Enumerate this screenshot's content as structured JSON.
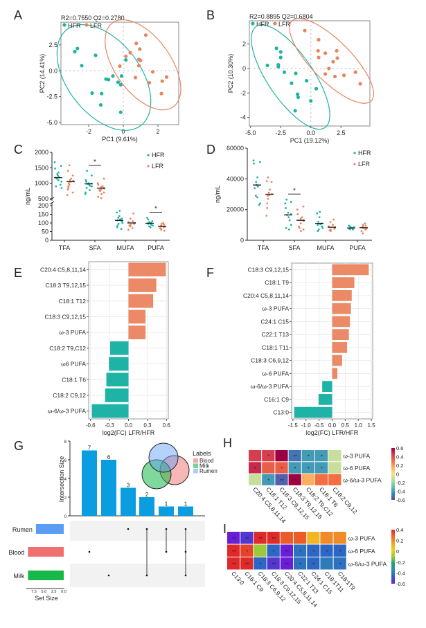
{
  "panel_labels": [
    "A",
    "B",
    "C",
    "D",
    "E",
    "F",
    "G",
    "H",
    "I"
  ],
  "colors": {
    "HFR": "#1fb3a3",
    "LFR": "#e8845e",
    "bar_up": "#ec8a68",
    "bar_down": "#1fb3a8",
    "upset_bar": "#0a9de0",
    "rumen": "#5b9cf5",
    "blood": "#f07070",
    "milk": "#18b84a"
  },
  "chart_data": [
    {
      "type": "scatter",
      "title": "R2=0.7550 Q2=0.2780",
      "xlabel": "PC1 (9.61%)",
      "ylabel": "PC2 (14.41%)",
      "xlim": [
        -3.6,
        3.2
      ],
      "ylim": [
        -5.2,
        4.7
      ],
      "xticks": [
        "-2",
        "0",
        "2"
      ],
      "yticks": [
        "2.5",
        "0.0",
        "-2.5",
        "-5.0"
      ],
      "legend": "top-left",
      "series": [
        {
          "name": "HFR",
          "points": [
            [
              -2.8,
              1.85
            ],
            [
              -2.65,
              2.15
            ],
            [
              -2.4,
              0.5
            ],
            [
              -1.6,
              1.5
            ],
            [
              -1.8,
              -2.15
            ],
            [
              -1.25,
              -2.2
            ],
            [
              -1.3,
              -3.3
            ],
            [
              -1.0,
              -0.8
            ],
            [
              -0.85,
              -0.85
            ],
            [
              -0.6,
              -0.5
            ],
            [
              -0.3,
              -1.1
            ],
            [
              -0.15,
              -1.35
            ],
            [
              -0.1,
              -0.5
            ],
            [
              0.15,
              1.05
            ],
            [
              -0.15,
              -4.0
            ]
          ]
        },
        {
          "name": "LFR",
          "points": [
            [
              1.3,
              3.45
            ],
            [
              0.75,
              2.65
            ],
            [
              0.95,
              2.1
            ],
            [
              0.4,
              1.75
            ],
            [
              0.15,
              1.4
            ],
            [
              0.9,
              1.1
            ],
            [
              1.0,
              1.0
            ],
            [
              0.9,
              0.5
            ],
            [
              -0.2,
              0.45
            ],
            [
              1.7,
              -0.1
            ],
            [
              0.7,
              -0.65
            ],
            [
              1.5,
              -1.15
            ],
            [
              2.5,
              -0.6
            ],
            [
              2.25,
              -1.0
            ],
            [
              2.2,
              -2.2
            ]
          ]
        }
      ]
    },
    {
      "type": "scatter",
      "title": "R2=0.8895 Q2=0.6804",
      "xlabel": "PC1 (19.12%)",
      "ylabel": "PC2 (10.30%)",
      "xlim": [
        -5.1,
        4.9
      ],
      "ylim": [
        -4.7,
        3.9
      ],
      "xticks": [
        "-5.0",
        "-2.5",
        "0.0",
        "2.5"
      ],
      "yticks": [
        "2",
        "0",
        "-2",
        "-4"
      ],
      "legend": "top-left",
      "series": [
        {
          "name": "HFR",
          "points": [
            [
              -2.85,
              1.65
            ],
            [
              -2.5,
              1.35
            ],
            [
              -2.5,
              0.9
            ],
            [
              -3.6,
              0.25
            ],
            [
              -2.7,
              0.3
            ],
            [
              -2.7,
              0.15
            ],
            [
              -2.2,
              -0.3
            ],
            [
              -1.25,
              -0.4
            ],
            [
              -1.6,
              -1.2
            ],
            [
              -0.35,
              -1.0
            ],
            [
              0.45,
              -1.65
            ],
            [
              -1.1,
              -2.1
            ],
            [
              -1.05,
              -2.35
            ],
            [
              0.0,
              -2.65
            ],
            [
              -1.3,
              -3.45
            ]
          ]
        },
        {
          "name": "LFR",
          "points": [
            [
              -0.5,
              3.1
            ],
            [
              0.65,
              2.35
            ],
            [
              0.6,
              1.45
            ],
            [
              1.2,
              1.25
            ],
            [
              0.65,
              0.9
            ],
            [
              2.15,
              1.45
            ],
            [
              2.2,
              0.85
            ],
            [
              1.85,
              0.55
            ],
            [
              1.5,
              0.0
            ],
            [
              1.2,
              -0.45
            ],
            [
              2.0,
              -0.65
            ],
            [
              2.75,
              -0.55
            ],
            [
              3.7,
              -0.3
            ],
            [
              4.1,
              -1.25
            ]
          ]
        }
      ]
    },
    {
      "type": "scatter",
      "ylabel": "ng/mL",
      "categories": [
        "TFA",
        "SFA",
        "MUFA",
        "PUFA"
      ],
      "yticks_lower": [
        "0",
        "50",
        "100",
        "150",
        "200"
      ],
      "yticks_upper": [
        "500",
        "1000",
        "1500",
        "2000"
      ],
      "y_break": [
        200,
        500
      ],
      "legend": "top-right",
      "significance": [
        "",
        "*",
        "",
        "*"
      ],
      "sig_label": "*",
      "series": [
        {
          "name": "HFR",
          "mean": [
            1180,
            980,
            115,
            98
          ],
          "points": [
            [
              1680,
              1560,
              1480,
              1350,
              1300,
              1250,
              1200,
              1180,
              1150,
              1100,
              1050,
              950,
              900,
              850
            ],
            [
              1400,
              1250,
              1100,
              1050,
              1000,
              990,
              980,
              950,
              920,
              900,
              850,
              780,
              700,
              650
            ],
            [
              170,
              160,
              140,
              130,
              125,
              120,
              115,
              110,
              100,
              95,
              85,
              75,
              65
            ],
            [
              130,
              120,
              110,
              105,
              100,
              100,
              98,
              95,
              90,
              85,
              80,
              75
            ]
          ]
        },
        {
          "name": "LFR",
          "mean": [
            1050,
            840,
            100,
            80
          ],
          "points": [
            [
              1580,
              1400,
              1250,
              1150,
              1100,
              1080,
              1050,
              1000,
              950,
              900,
              850,
              800,
              700,
              620
            ],
            [
              1150,
              1000,
              950,
              900,
              880,
              850,
              830,
              800,
              780,
              750,
              700,
              650,
              560,
              520
            ],
            [
              155,
              125,
              110,
              105,
              100,
              100,
              95,
              90,
              85,
              80,
              70,
              60
            ],
            [
              100,
              95,
              90,
              85,
              82,
              80,
              78,
              75,
              70,
              65,
              60,
              55
            ]
          ]
        }
      ]
    },
    {
      "type": "scatter",
      "ylabel": "ng/mL",
      "categories": [
        "TFA",
        "SFA",
        "MUFA",
        "PUFA"
      ],
      "ylim": [
        0,
        60000
      ],
      "yticks": [
        "0",
        "20000",
        "40000",
        "60000"
      ],
      "legend": "top-right",
      "significance": [
        "",
        "*",
        "",
        ""
      ],
      "sig_label": "*",
      "series": [
        {
          "name": "HFR",
          "mean": [
            36000,
            16500,
            11000,
            8000
          ],
          "points": [
            [
              52000,
              51000,
              50000,
              41000,
              38000,
              36000,
              35000,
              34000,
              29000,
              28000,
              24000,
              23000
            ],
            [
              26500,
              25000,
              24000,
              21000,
              18000,
              17000,
              16500,
              15000,
              13000,
              10000,
              8000,
              7000
            ],
            [
              18500,
              17500,
              15000,
              12000,
              11000,
              10500,
              10000,
              9000,
              8000,
              7000,
              6000
            ],
            [
              9500,
              9000,
              8500,
              8200,
              8000,
              7800,
              7500,
              7200,
              7000
            ]
          ]
        },
        {
          "name": "LFR",
          "mean": [
            30000,
            13000,
            8500,
            8200
          ],
          "points": [
            [
              41000,
              38500,
              38000,
              33000,
              31000,
              30000,
              29500,
              29000,
              27000,
              24000,
              21000,
              16000
            ],
            [
              22000,
              20000,
              17000,
              15000,
              14000,
              13000,
              12500,
              11000,
              9000,
              8000,
              7000,
              6000
            ],
            [
              13500,
              12000,
              10000,
              9000,
              8500,
              8000,
              7500,
              7000,
              6500,
              6000
            ],
            [
              11000,
              10000,
              9500,
              9000,
              8500,
              8000,
              7500,
              7000,
              6000,
              4500
            ]
          ]
        }
      ]
    },
    {
      "type": "bar",
      "orientation": "horizontal",
      "xlabel": "log2(FC) LFR/HFR",
      "xlim": [
        -0.63,
        0.63
      ],
      "xticks": [
        "-0.6",
        "-0.3",
        "0.0",
        "0.3",
        "0.6"
      ],
      "categories": [
        "C20:4 C5,8,11,14",
        "C18:3 T9,12,15",
        "C18:1 T12",
        "C18:3 C9,12,15",
        "ω-3 PUFA",
        "C18:2 T9,C12",
        "ω6 PUFA",
        "C18:1 T6",
        "C18:2 C9,12",
        "ω-6/ω-3 PUFA"
      ],
      "values": [
        0.59,
        0.44,
        0.39,
        0.27,
        0.27,
        -0.29,
        -0.31,
        -0.35,
        -0.37,
        -0.58
      ],
      "grid": true
    },
    {
      "type": "bar",
      "orientation": "horizontal",
      "xlabel": "log2(FC) LFR/HFR",
      "xlim": [
        -1.55,
        1.55
      ],
      "xticks": [
        "-1.5",
        "-1.0",
        "-0.5",
        "0.0",
        "0.5",
        "1.0",
        "1.5"
      ],
      "categories": [
        "C18:3 C9,12,15",
        "C18:1 T9",
        "C20:4 C5,8,11,14",
        "ω-3 PUFA",
        "C24:1 C15",
        "C22:1 T13",
        "C18:1 T11",
        "C18:3 C6,9,12",
        "ω-6 PUFA",
        "ω-6/ω-3 PUFA",
        "C16:1 C9",
        "C13:0"
      ],
      "values": [
        1.4,
        0.85,
        0.75,
        0.72,
        0.68,
        0.64,
        0.57,
        0.38,
        0.2,
        -0.38,
        -0.52,
        -1.45
      ],
      "grid": true
    },
    {
      "type": "bar",
      "subtype": "upset",
      "ylabel": "Intersection Size",
      "yticks": [
        "0",
        "2",
        "4",
        "6",
        "8"
      ],
      "ylim": [
        0,
        8
      ],
      "sets": [
        "Rumen",
        "Blood",
        "Milk"
      ],
      "set_sizes": [
        7,
        9,
        9
      ],
      "set_size_label": "Set Size",
      "set_size_ticks": [
        "7.5",
        "5.0",
        "2.5",
        "0.0"
      ],
      "intersections": [
        {
          "sets": [
            "Blood"
          ],
          "size": 7,
          "label": "7"
        },
        {
          "sets": [
            "Milk"
          ],
          "size": 6,
          "label": "6"
        },
        {
          "sets": [
            "Rumen"
          ],
          "size": 3,
          "label": "3"
        },
        {
          "sets": [
            "Rumen",
            "Milk"
          ],
          "size": 2,
          "label": "2"
        },
        {
          "sets": [
            "Rumen",
            "Blood"
          ],
          "size": 1,
          "label": "1"
        },
        {
          "sets": [
            "Rumen",
            "Blood",
            "Milk"
          ],
          "size": 1,
          "label": "1"
        }
      ],
      "venn_legend": {
        "title": "Labels",
        "items": [
          "Blood",
          "Milk",
          "Rumen"
        ]
      }
    },
    {
      "type": "heatmap",
      "rows": [
        "ω-3 PUFA",
        "ω-6 PUFA",
        "ω-6/ω-3 PUFA"
      ],
      "columns": [
        "C20:4 C5,8,11,14",
        "C18:1 T12",
        "C18:3 C9,12,15",
        "C18:3 T9,12,15",
        "C18:2 T9,C12",
        "C18:1 T6",
        "C18:2 C9,12"
      ],
      "values": [
        [
          0.45,
          0.45,
          0.6,
          -0.5,
          -0.4,
          -0.4,
          -0.1
        ],
        [
          0.5,
          0.35,
          0.35,
          -0.4,
          -0.4,
          -0.4,
          -0.1
        ],
        [
          -0.1,
          -0.4,
          -0.55,
          0.6,
          0.15,
          0.3,
          0.3
        ]
      ],
      "marks": [
        [
          "",
          "*",
          "**",
          "**",
          "*",
          "*",
          ""
        ],
        [
          "*",
          "",
          "*",
          "*",
          "*",
          "*",
          ""
        ],
        [
          "",
          "*",
          "**",
          "**",
          "",
          "",
          ""
        ]
      ],
      "zlim": [
        -0.6,
        0.6
      ],
      "colorbar_ticks": [
        "0.6",
        "0.4",
        "0.2",
        "0",
        "-0.2",
        "-0.4",
        "-0.6"
      ],
      "palette": [
        "#5e4fa2",
        "#3288bd",
        "#66c2a5",
        "#abdda4",
        "#fee08b",
        "#fdae61",
        "#f46d43",
        "#d53e4f",
        "#9e0142"
      ]
    },
    {
      "type": "heatmap",
      "rows": [
        "ω-3 PUFA",
        "ω-6 PUFA",
        "ω-6/ω-3 PUFA"
      ],
      "columns": [
        "C13:0",
        "C16:1 C9",
        "C18:3 C6,9,12",
        "C18:3 C9,12,15",
        "C20:4 C5,8,11,14",
        "C22:1 T13",
        "C24:1 C15",
        "C18:1T11",
        "C18:1T9"
      ],
      "values": [
        [
          -0.6,
          -0.55,
          0.4,
          0.4,
          0.3,
          0.3,
          0.1,
          0.2,
          0.2
        ],
        [
          0.4,
          0.35,
          -0.1,
          -0.45,
          -0.6,
          -0.42,
          -0.45,
          -0.45,
          -0.45
        ],
        [
          0.4,
          0.4,
          -0.45,
          -0.55,
          -0.6,
          -0.42,
          -0.45,
          -0.4,
          -0.42
        ]
      ],
      "marks": [
        [
          "**",
          "**",
          "**",
          "**",
          "",
          "",
          "",
          "",
          ""
        ],
        [
          "**",
          "*",
          "",
          "*",
          "**",
          "*",
          "*",
          "*",
          "*"
        ],
        [
          "**",
          "**",
          "*",
          "**",
          "**",
          "*",
          "*",
          "",
          "*"
        ]
      ],
      "zlim": [
        -0.6,
        0.4
      ],
      "colorbar_ticks": [
        "0.4",
        "0.2",
        "0",
        "-0.2",
        "-0.4",
        "-0.6"
      ],
      "palette": [
        "#6a1fd6",
        "#2f5cc9",
        "#2b8fb0",
        "#22a36b",
        "#9cc93a",
        "#f0d21e",
        "#f2a12a",
        "#ec6a2a",
        "#e02a2a"
      ]
    }
  ]
}
